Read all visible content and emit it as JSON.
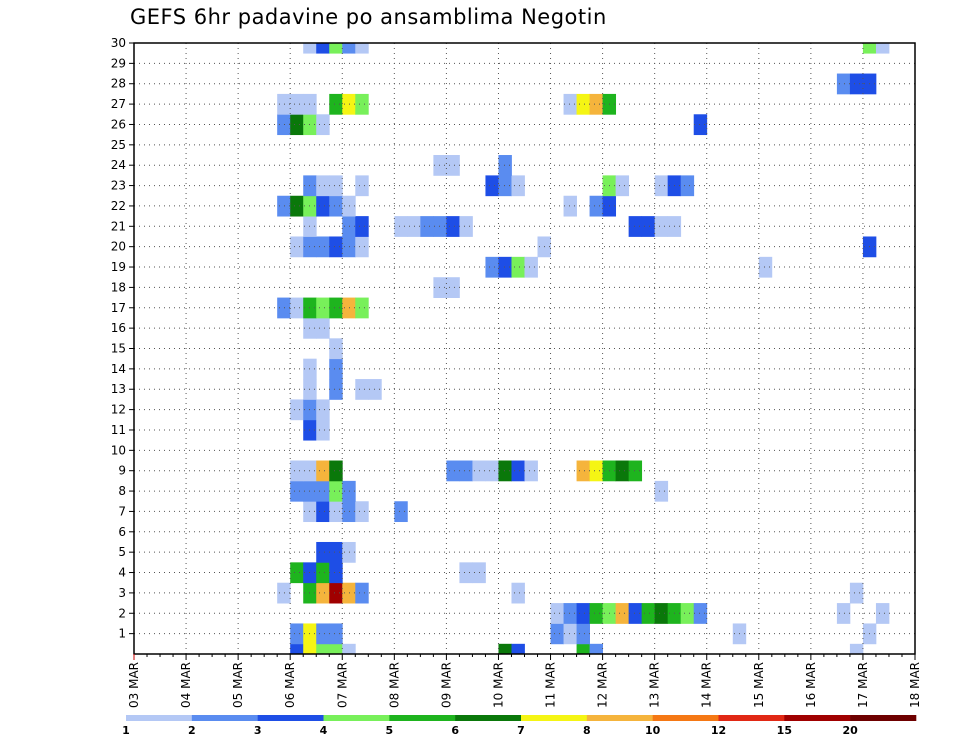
{
  "chart_data": {
    "type": "heatmap",
    "title": "GEFS 6hr padavine po ansamblima Negotin",
    "xlabel": "",
    "ylabel": "",
    "x_tick_labels": [
      "03 MAR",
      "04 MAR",
      "05 MAR",
      "06 MAR",
      "07 MAR",
      "08 MAR",
      "09 MAR",
      "10 MAR",
      "11 MAR",
      "12 MAR",
      "13 MAR",
      "14 MAR",
      "15 MAR",
      "16 MAR",
      "17 MAR",
      "18 MAR"
    ],
    "y_tick_labels": [
      "1",
      "2",
      "3",
      "4",
      "5",
      "6",
      "7",
      "8",
      "9",
      "10",
      "11",
      "12",
      "13",
      "14",
      "15",
      "16",
      "17",
      "18",
      "19",
      "20",
      "21",
      "22",
      "23",
      "24",
      "25",
      "26",
      "27",
      "28",
      "29",
      "30"
    ],
    "xlim": [
      "03 MAR",
      "18 MAR"
    ],
    "ylim": [
      0,
      30
    ],
    "grid": true,
    "time_step_hours": 6,
    "legend": {
      "position": "bottom",
      "labels": [
        "1",
        "2",
        "3",
        "4",
        "5",
        "6",
        "7",
        "8",
        "10",
        "12",
        "15",
        "20"
      ],
      "colors": [
        "#b4c8f5",
        "#5a8cf0",
        "#1e4ee6",
        "#78f05a",
        "#1eb41e",
        "#0a780a",
        "#f5f514",
        "#f5b43c",
        "#f57814",
        "#e12814",
        "#a00000",
        "#6e0000"
      ]
    },
    "value_classes": {
      "a": "1-2",
      "b": "2-3",
      "c": "3-4",
      "d": "4-5",
      "e": "5-6",
      "f": "6-7",
      "g": "7-8",
      "h": "8-10",
      "j": "10-12",
      "k": "12-15",
      "m": "15-20",
      "n": ">20"
    },
    "class_colors": {
      "a": "#b4c8f5",
      "b": "#5a8cf0",
      "c": "#1e4ee6",
      "d": "#78f05a",
      "e": "#1eb41e",
      "f": "#0a780a",
      "g": "#f5f514",
      "h": "#f5b43c",
      "j": "#f57814",
      "k": "#e12814",
      "m": "#a00000",
      "n": "#6e0000"
    },
    "rows": [
      {
        "y": 0,
        "cells": [
          [
            "2026-03-06T00",
            "c"
          ],
          [
            "2026-03-06T06",
            "g"
          ],
          [
            "2026-03-06T12",
            "d"
          ],
          [
            "2026-03-06T18",
            "d"
          ],
          [
            "2026-03-07T00",
            "a"
          ],
          [
            "2026-03-10T00",
            "f"
          ],
          [
            "2026-03-10T06",
            "c"
          ],
          [
            "2026-03-11T12",
            "e"
          ],
          [
            "2026-03-11T18",
            "b"
          ],
          [
            "2026-03-16T18",
            "a"
          ]
        ]
      },
      {
        "y": 1,
        "cells": [
          [
            "2026-03-06T00",
            "b"
          ],
          [
            "2026-03-06T06",
            "g"
          ],
          [
            "2026-03-06T12",
            "b"
          ],
          [
            "2026-03-06T18",
            "b"
          ],
          [
            "2026-03-11T00",
            "b"
          ],
          [
            "2026-03-11T06",
            "a"
          ],
          [
            "2026-03-11T12",
            "b"
          ],
          [
            "2026-03-14T12",
            "a"
          ],
          [
            "2026-03-17T00",
            "a"
          ]
        ]
      },
      {
        "y": 2,
        "cells": [
          [
            "2026-03-11T00",
            "a"
          ],
          [
            "2026-03-11T06",
            "b"
          ],
          [
            "2026-03-11T12",
            "c"
          ],
          [
            "2026-03-11T18",
            "e"
          ],
          [
            "2026-03-12T00",
            "d"
          ],
          [
            "2026-03-12T06",
            "h"
          ],
          [
            "2026-03-12T12",
            "c"
          ],
          [
            "2026-03-12T18",
            "e"
          ],
          [
            "2026-03-13T00",
            "f"
          ],
          [
            "2026-03-13T06",
            "e"
          ],
          [
            "2026-03-13T12",
            "d"
          ],
          [
            "2026-03-13T18",
            "b"
          ],
          [
            "2026-03-16T12",
            "a"
          ],
          [
            "2026-03-17T06",
            "a"
          ]
        ]
      },
      {
        "y": 3,
        "cells": [
          [
            "2026-03-05T18",
            "a"
          ],
          [
            "2026-03-06T06",
            "e"
          ],
          [
            "2026-03-06T12",
            "h"
          ],
          [
            "2026-03-06T18",
            "m"
          ],
          [
            "2026-03-07T00",
            "h"
          ],
          [
            "2026-03-07T06",
            "b"
          ],
          [
            "2026-03-10T06",
            "a"
          ],
          [
            "2026-03-16T18",
            "a"
          ]
        ]
      },
      {
        "y": 4,
        "cells": [
          [
            "2026-03-06T00",
            "e"
          ],
          [
            "2026-03-06T06",
            "c"
          ],
          [
            "2026-03-06T12",
            "e"
          ],
          [
            "2026-03-06T18",
            "c"
          ],
          [
            "2026-03-09T06",
            "a"
          ],
          [
            "2026-03-09T12",
            "a"
          ]
        ]
      },
      {
        "y": 5,
        "cells": [
          [
            "2026-03-06T12",
            "c"
          ],
          [
            "2026-03-06T18",
            "c"
          ],
          [
            "2026-03-07T00",
            "a"
          ]
        ]
      },
      {
        "y": 7,
        "cells": [
          [
            "2026-03-06T06",
            "a"
          ],
          [
            "2026-03-06T12",
            "c"
          ],
          [
            "2026-03-06T18",
            "a"
          ],
          [
            "2026-03-07T00",
            "b"
          ],
          [
            "2026-03-07T06",
            "a"
          ],
          [
            "2026-03-08T00",
            "b"
          ]
        ]
      },
      {
        "y": 8,
        "cells": [
          [
            "2026-03-06T00",
            "b"
          ],
          [
            "2026-03-06T06",
            "b"
          ],
          [
            "2026-03-06T12",
            "b"
          ],
          [
            "2026-03-06T18",
            "d"
          ],
          [
            "2026-03-07T00",
            "b"
          ],
          [
            "2026-03-13T00",
            "a"
          ]
        ]
      },
      {
        "y": 9,
        "cells": [
          [
            "2026-03-06T00",
            "a"
          ],
          [
            "2026-03-06T06",
            "a"
          ],
          [
            "2026-03-06T12",
            "h"
          ],
          [
            "2026-03-06T18",
            "f"
          ],
          [
            "2026-03-09T00",
            "b"
          ],
          [
            "2026-03-09T06",
            "b"
          ],
          [
            "2026-03-09T12",
            "a"
          ],
          [
            "2026-03-09T18",
            "a"
          ],
          [
            "2026-03-10T00",
            "f"
          ],
          [
            "2026-03-10T06",
            "c"
          ],
          [
            "2026-03-10T12",
            "a"
          ],
          [
            "2026-03-11T12",
            "h"
          ],
          [
            "2026-03-11T18",
            "g"
          ],
          [
            "2026-03-12T00",
            "e"
          ],
          [
            "2026-03-12T06",
            "f"
          ],
          [
            "2026-03-12T12",
            "e"
          ]
        ]
      },
      {
        "y": 11,
        "cells": [
          [
            "2026-03-06T06",
            "c"
          ],
          [
            "2026-03-06T12",
            "a"
          ]
        ]
      },
      {
        "y": 12,
        "cells": [
          [
            "2026-03-06T00",
            "a"
          ],
          [
            "2026-03-06T06",
            "b"
          ],
          [
            "2026-03-06T12",
            "a"
          ]
        ]
      },
      {
        "y": 13,
        "cells": [
          [
            "2026-03-06T06",
            "a"
          ],
          [
            "2026-03-06T18",
            "b"
          ],
          [
            "2026-03-07T06",
            "a"
          ],
          [
            "2026-03-07T12",
            "a"
          ]
        ]
      },
      {
        "y": 14,
        "cells": [
          [
            "2026-03-06T06",
            "a"
          ],
          [
            "2026-03-06T18",
            "b"
          ]
        ]
      },
      {
        "y": 15,
        "cells": [
          [
            "2026-03-06T18",
            "a"
          ]
        ]
      },
      {
        "y": 16,
        "cells": [
          [
            "2026-03-06T06",
            "a"
          ],
          [
            "2026-03-06T12",
            "a"
          ]
        ]
      },
      {
        "y": 17,
        "cells": [
          [
            "2026-03-05T18",
            "b"
          ],
          [
            "2026-03-06T00",
            "a"
          ],
          [
            "2026-03-06T06",
            "e"
          ],
          [
            "2026-03-06T12",
            "d"
          ],
          [
            "2026-03-06T18",
            "e"
          ],
          [
            "2026-03-07T00",
            "h"
          ],
          [
            "2026-03-07T06",
            "d"
          ]
        ]
      },
      {
        "y": 18,
        "cells": [
          [
            "2026-03-08T18",
            "a"
          ],
          [
            "2026-03-09T00",
            "a"
          ]
        ]
      },
      {
        "y": 19,
        "cells": [
          [
            "2026-03-09T18",
            "b"
          ],
          [
            "2026-03-10T00",
            "c"
          ],
          [
            "2026-03-10T06",
            "d"
          ],
          [
            "2026-03-10T12",
            "a"
          ],
          [
            "2026-03-15T00",
            "a"
          ]
        ]
      },
      {
        "y": 20,
        "cells": [
          [
            "2026-03-06T00",
            "a"
          ],
          [
            "2026-03-06T06",
            "b"
          ],
          [
            "2026-03-06T12",
            "b"
          ],
          [
            "2026-03-06T18",
            "c"
          ],
          [
            "2026-03-07T00",
            "b"
          ],
          [
            "2026-03-07T06",
            "a"
          ],
          [
            "2026-03-10T18",
            "a"
          ],
          [
            "2026-03-17T00",
            "c"
          ]
        ]
      },
      {
        "y": 21,
        "cells": [
          [
            "2026-03-06T06",
            "a"
          ],
          [
            "2026-03-07T00",
            "b"
          ],
          [
            "2026-03-07T06",
            "c"
          ],
          [
            "2026-03-08T00",
            "a"
          ],
          [
            "2026-03-08T06",
            "a"
          ],
          [
            "2026-03-08T12",
            "b"
          ],
          [
            "2026-03-08T18",
            "b"
          ],
          [
            "2026-03-09T00",
            "c"
          ],
          [
            "2026-03-09T06",
            "a"
          ],
          [
            "2026-03-12T12",
            "c"
          ],
          [
            "2026-03-12T18",
            "c"
          ],
          [
            "2026-03-13T00",
            "a"
          ],
          [
            "2026-03-13T06",
            "a"
          ]
        ]
      },
      {
        "y": 22,
        "cells": [
          [
            "2026-03-05T18",
            "b"
          ],
          [
            "2026-03-06T00",
            "f"
          ],
          [
            "2026-03-06T06",
            "d"
          ],
          [
            "2026-03-06T12",
            "c"
          ],
          [
            "2026-03-06T18",
            "b"
          ],
          [
            "2026-03-07T00",
            "a"
          ],
          [
            "2026-03-11T06",
            "a"
          ],
          [
            "2026-03-11T18",
            "b"
          ],
          [
            "2026-03-12T00",
            "c"
          ]
        ]
      },
      {
        "y": 23,
        "cells": [
          [
            "2026-03-06T06",
            "b"
          ],
          [
            "2026-03-06T12",
            "a"
          ],
          [
            "2026-03-06T18",
            "a"
          ],
          [
            "2026-03-07T06",
            "a"
          ],
          [
            "2026-03-09T18",
            "c"
          ],
          [
            "2026-03-10T00",
            "b"
          ],
          [
            "2026-03-10T06",
            "a"
          ],
          [
            "2026-03-12T00",
            "d"
          ],
          [
            "2026-03-12T06",
            "a"
          ],
          [
            "2026-03-13T00",
            "a"
          ],
          [
            "2026-03-13T06",
            "c"
          ],
          [
            "2026-03-13T12",
            "b"
          ]
        ]
      },
      {
        "y": 24,
        "cells": [
          [
            "2026-03-08T18",
            "a"
          ],
          [
            "2026-03-09T00",
            "a"
          ],
          [
            "2026-03-10T00",
            "b"
          ]
        ]
      },
      {
        "y": 26,
        "cells": [
          [
            "2026-03-05T18",
            "b"
          ],
          [
            "2026-03-06T00",
            "f"
          ],
          [
            "2026-03-06T06",
            "d"
          ],
          [
            "2026-03-06T12",
            "a"
          ],
          [
            "2026-03-13T18",
            "c"
          ]
        ]
      },
      {
        "y": 27,
        "cells": [
          [
            "2026-03-05T18",
            "a"
          ],
          [
            "2026-03-06T00",
            "a"
          ],
          [
            "2026-03-06T06",
            "a"
          ],
          [
            "2026-03-06T18",
            "e"
          ],
          [
            "2026-03-07T00",
            "g"
          ],
          [
            "2026-03-07T06",
            "d"
          ],
          [
            "2026-03-11T06",
            "a"
          ],
          [
            "2026-03-11T12",
            "g"
          ],
          [
            "2026-03-11T18",
            "h"
          ],
          [
            "2026-03-12T00",
            "e"
          ]
        ]
      },
      {
        "y": 28,
        "cells": [
          [
            "2026-03-16T12",
            "b"
          ],
          [
            "2026-03-16T18",
            "c"
          ],
          [
            "2026-03-17T00",
            "c"
          ]
        ]
      },
      {
        "y": 30,
        "cells": [
          [
            "2026-03-06T06",
            "a"
          ],
          [
            "2026-03-06T12",
            "c"
          ],
          [
            "2026-03-06T18",
            "d"
          ],
          [
            "2026-03-07T00",
            "b"
          ],
          [
            "2026-03-07T06",
            "a"
          ],
          [
            "2026-03-17T00",
            "d"
          ],
          [
            "2026-03-17T06",
            "a"
          ]
        ]
      }
    ]
  }
}
